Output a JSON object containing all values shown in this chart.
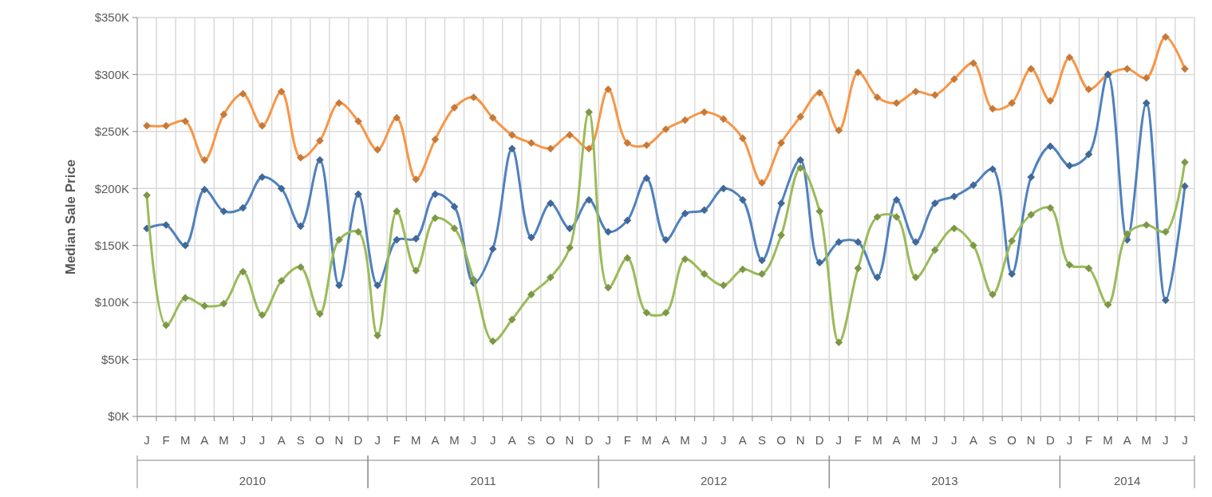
{
  "chart_data": {
    "type": "line",
    "ylabel": "Median Sale Price",
    "categories": [
      "J",
      "F",
      "M",
      "A",
      "M",
      "J",
      "J",
      "A",
      "S",
      "O",
      "N",
      "D",
      "J",
      "F",
      "M",
      "A",
      "M",
      "J",
      "J",
      "A",
      "S",
      "O",
      "N",
      "D",
      "J",
      "F",
      "M",
      "A",
      "M",
      "J",
      "J",
      "A",
      "S",
      "O",
      "N",
      "D",
      "J",
      "F",
      "M",
      "A",
      "M",
      "J",
      "J",
      "A",
      "S",
      "O",
      "N",
      "D",
      "J",
      "F",
      "M",
      "A",
      "M",
      "J",
      "J"
    ],
    "annotations": [
      "2010",
      "2011",
      "2012",
      "2013",
      "2014"
    ],
    "series": [
      {
        "color": "#f79646",
        "values": [
          255,
          255,
          259,
          225,
          265,
          283,
          255,
          285,
          227,
          242,
          275,
          259,
          234,
          262,
          208,
          243,
          271,
          280,
          262,
          247,
          240,
          235,
          247,
          235,
          287,
          240,
          238,
          252,
          260,
          267,
          261,
          244,
          205,
          240,
          263,
          284,
          251,
          302,
          280,
          275,
          285,
          282,
          296,
          310,
          270,
          275,
          305,
          277,
          315,
          287,
          300,
          305,
          297,
          333,
          305
        ]
      },
      {
        "color": "#4f81bd",
        "values": [
          165,
          168,
          150,
          199,
          180,
          183,
          210,
          200,
          167,
          225,
          115,
          195,
          115,
          155,
          156,
          195,
          184,
          117,
          147,
          235,
          157,
          187,
          165,
          190,
          162,
          172,
          209,
          155,
          178,
          181,
          200,
          190,
          137,
          187,
          225,
          135,
          153,
          153,
          122,
          190,
          153,
          187,
          193,
          203,
          217,
          125,
          210,
          237,
          220,
          230,
          300,
          155,
          275,
          102,
          202
        ]
      },
      {
        "color": "#9bbb59",
        "values": [
          194,
          80,
          104,
          97,
          99,
          127,
          89,
          119,
          131,
          90,
          155,
          162,
          71,
          180,
          128,
          174,
          165,
          120,
          66,
          85,
          107,
          122,
          148,
          267,
          113,
          139,
          91,
          91,
          138,
          125,
          115,
          129,
          125,
          159,
          218,
          180,
          65,
          130,
          175,
          175,
          122,
          146,
          165,
          150,
          107,
          154,
          177,
          183,
          133,
          130,
          98,
          160,
          168,
          162,
          223
        ]
      }
    ],
    "ylim": [
      0,
      350
    ],
    "yticks": [
      {
        "value": 0,
        "label": "$0K"
      },
      {
        "value": 50,
        "label": "$50K"
      },
      {
        "value": 100,
        "label": "$100K"
      },
      {
        "value": 150,
        "label": "$150K"
      },
      {
        "value": 200,
        "label": "$200K"
      },
      {
        "value": 250,
        "label": "$250K"
      },
      {
        "value": 300,
        "label": "$300K"
      },
      {
        "value": 350,
        "label": "$350K"
      }
    ],
    "grid": true,
    "marker": "diamond",
    "line_style": "solid"
  }
}
